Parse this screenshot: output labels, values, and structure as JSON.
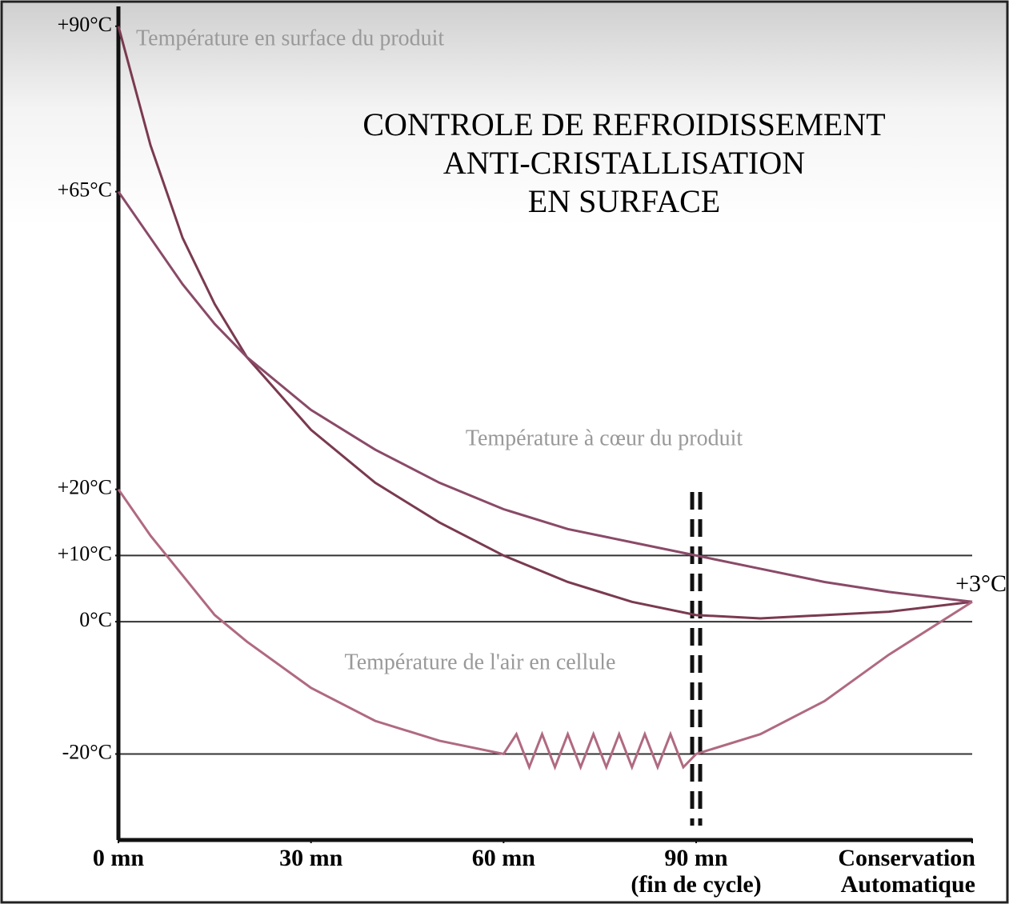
{
  "chart_data": {
    "type": "line",
    "title": [
      "CONTROLE  DE REFROIDISSEMENT",
      "ANTI-CRISTALLISATION",
      "EN SURFACE"
    ],
    "xlim": [
      0,
      133
    ],
    "ylim": [
      -33,
      93
    ],
    "xticks": [
      {
        "value": 0,
        "label": "0 mn"
      },
      {
        "value": 30,
        "label": "30 mn"
      },
      {
        "value": 60,
        "label": "60 mn"
      },
      {
        "value": 90,
        "label": "90 mn"
      },
      {
        "value": 133,
        "label": "Conservation"
      }
    ],
    "xtick_sublabels": [
      "(fin de cycle)",
      "Automatique"
    ],
    "yticks": [
      {
        "value": 90,
        "label": "+90°C"
      },
      {
        "value": 65,
        "label": "+65°C"
      },
      {
        "value": 20,
        "label": "+20°C"
      },
      {
        "value": 10,
        "label": "+10°C"
      },
      {
        "value": 0,
        "label": "0°C"
      },
      {
        "value": -20,
        "label": "-20°C"
      }
    ],
    "reference_lines": [
      10,
      0,
      -20
    ],
    "vline": 90,
    "end_label": "+3°C",
    "series": [
      {
        "name": "Température en surface du produit",
        "color": "#7a3a50",
        "x": [
          0,
          5,
          10,
          15,
          20,
          30,
          40,
          50,
          60,
          70,
          80,
          90,
          100,
          110,
          120,
          133
        ],
        "values": [
          90,
          72,
          58,
          48,
          40,
          29,
          21,
          15,
          10,
          6,
          3,
          1,
          0.5,
          1,
          1.5,
          3
        ]
      },
      {
        "name": "Température à cœur du produit",
        "color": "#8a4a68",
        "x": [
          0,
          5,
          10,
          15,
          20,
          30,
          40,
          50,
          60,
          70,
          80,
          90,
          100,
          110,
          120,
          133
        ],
        "values": [
          65,
          58,
          51,
          45,
          40,
          32,
          26,
          21,
          17,
          14,
          12,
          10,
          8,
          6,
          4.5,
          3
        ]
      },
      {
        "name": "Température de l'air en cellule",
        "color": "#b06a80",
        "x": [
          0,
          5,
          10,
          15,
          20,
          30,
          40,
          50,
          60,
          62,
          64,
          66,
          68,
          70,
          72,
          74,
          76,
          78,
          80,
          82,
          84,
          86,
          88,
          90,
          100,
          110,
          120,
          133
        ],
        "values": [
          20,
          13,
          7,
          1,
          -3,
          -10,
          -15,
          -18,
          -20,
          -17,
          -22,
          -17,
          -22,
          -17,
          -22,
          -17,
          -22,
          -17,
          -22,
          -17,
          -22,
          -17,
          -22,
          -20,
          -17,
          -12,
          -5,
          3
        ]
      }
    ]
  }
}
